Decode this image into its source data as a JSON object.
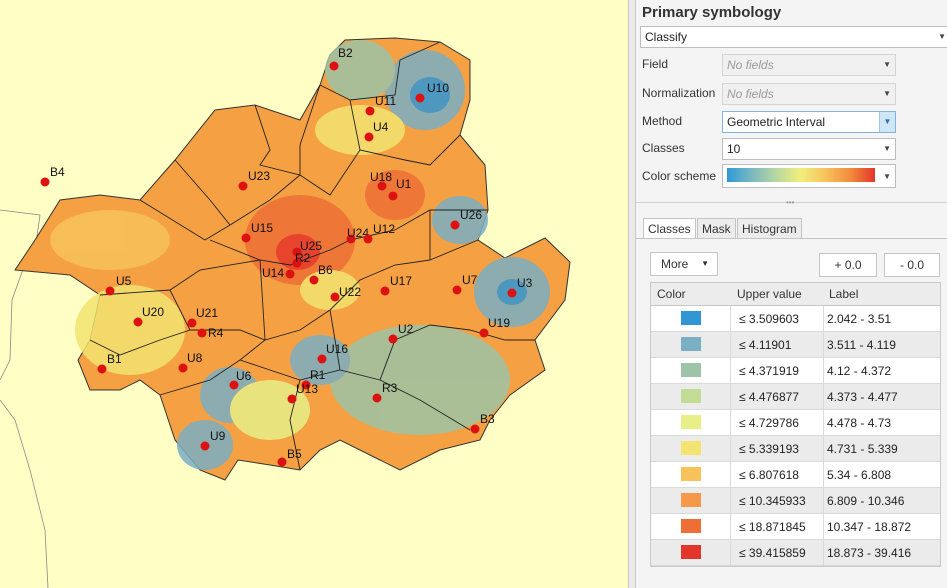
{
  "map": {
    "colors": {
      "background": "#fffec5",
      "outline": "#222222",
      "point": "#dd1111"
    },
    "points": [
      {
        "label": "B2"
      },
      {
        "label": "U10"
      },
      {
        "label": "U11"
      },
      {
        "label": "U4"
      },
      {
        "label": "B4"
      },
      {
        "label": "U23"
      },
      {
        "label": "U18"
      },
      {
        "label": "U1"
      },
      {
        "label": "U26"
      },
      {
        "label": "U15"
      },
      {
        "label": "U24"
      },
      {
        "label": "U12"
      },
      {
        "label": "U25"
      },
      {
        "label": "R2"
      },
      {
        "label": "B6"
      },
      {
        "label": "U14"
      },
      {
        "label": "U5"
      },
      {
        "label": "U17"
      },
      {
        "label": "U7"
      },
      {
        "label": "U3"
      },
      {
        "label": "U22"
      },
      {
        "label": "U21"
      },
      {
        "label": "U20"
      },
      {
        "label": "R4"
      },
      {
        "label": "U19"
      },
      {
        "label": "U2"
      },
      {
        "label": "B1"
      },
      {
        "label": "U8"
      },
      {
        "label": "U16"
      },
      {
        "label": "R1"
      },
      {
        "label": "U6"
      },
      {
        "label": "U13"
      },
      {
        "label": "R3"
      },
      {
        "label": "B3"
      },
      {
        "label": "U9"
      },
      {
        "label": "B5"
      }
    ]
  },
  "panel": {
    "title": "Primary symbology",
    "symbology_type": "Classify",
    "field_label": "Field",
    "field_value": "No fields",
    "normalization_label": "Normalization",
    "normalization_value": "No fields",
    "method_label": "Method",
    "method_value": "Geometric Interval",
    "classes_label": "Classes",
    "classes_value": "10",
    "color_scheme_label": "Color scheme",
    "tabs": [
      "Classes",
      "Mask",
      "Histogram"
    ],
    "more_label": "More",
    "plus_label": "+ 0.0",
    "minus_label": "- 0.0",
    "table_headers": {
      "color": "Color",
      "upper": "Upper value",
      "label": "Label"
    },
    "rows": [
      {
        "color": "#3296d4",
        "upper": "≤  3.509603",
        "label": "2.042 - 3.51"
      },
      {
        "color": "#7aafc4",
        "upper": "≤  4.11901",
        "label": "3.511 - 4.119"
      },
      {
        "color": "#9dc4a6",
        "upper": "≤  4.371919",
        "label": "4.12 - 4.372"
      },
      {
        "color": "#c3dc95",
        "upper": "≤  4.476877",
        "label": "4.373 - 4.477"
      },
      {
        "color": "#e7ef86",
        "upper": "≤  4.729786",
        "label": "4.478 - 4.73"
      },
      {
        "color": "#f3e370",
        "upper": "≤  5.339193",
        "label": "4.731 - 5.339"
      },
      {
        "color": "#f7c25a",
        "upper": "≤  6.807618",
        "label": "5.34 - 6.808"
      },
      {
        "color": "#f4984a",
        "upper": "≤  10.345933",
        "label": "6.809 - 10.346"
      },
      {
        "color": "#ee6f36",
        "upper": "≤  18.871845",
        "label": "10.347 - 18.872"
      },
      {
        "color": "#e4352a",
        "upper": "≤  39.415859",
        "label": "18.873 - 39.416"
      }
    ]
  }
}
